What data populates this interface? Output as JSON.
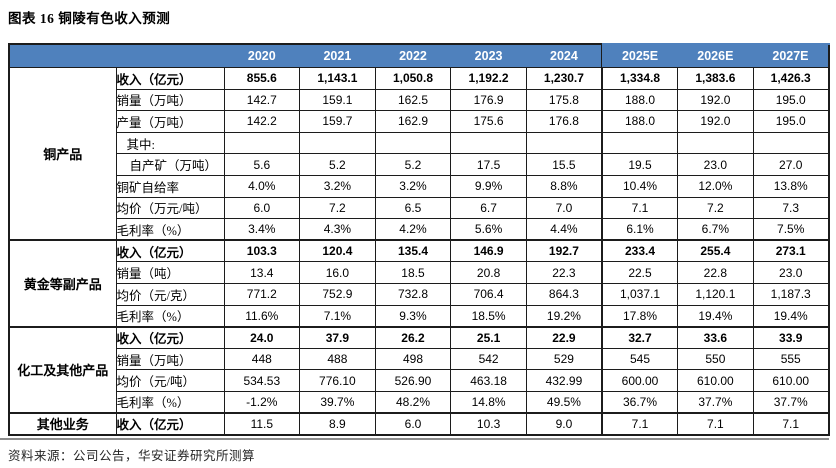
{
  "title": "图表 16 铜陵有色收入预测",
  "source": "资料来源：公司公告，华安证券研究所测算",
  "colors": {
    "header_bg": "#4f81bd",
    "header_text": "#ffffff",
    "border": "#1c1c1c",
    "divider": "#8c8c8c"
  },
  "table": {
    "years": [
      "2020",
      "2021",
      "2022",
      "2023",
      "2024",
      "2025E",
      "2026E",
      "2027E"
    ],
    "estimate_columns_start_index": 5,
    "sections": [
      {
        "group": "铜产品",
        "rows": [
          {
            "label": "收入（亿元）",
            "bold": true,
            "bold_values": true,
            "values": [
              "855.6",
              "1,143.1",
              "1,050.8",
              "1,192.2",
              "1,230.7",
              "1,334.8",
              "1,383.6",
              "1,426.3"
            ]
          },
          {
            "label": "销量（万吨）",
            "values": [
              "142.7",
              "159.1",
              "162.5",
              "176.9",
              "175.8",
              "188.0",
              "192.0",
              "195.0"
            ]
          },
          {
            "label": "产量（万吨）",
            "values": [
              "142.2",
              "159.7",
              "162.9",
              "175.6",
              "176.8",
              "188.0",
              "192.0",
              "195.0"
            ]
          },
          {
            "label": "其中:",
            "indent": 1,
            "values": [
              "",
              "",
              "",
              "",
              "",
              "",
              "",
              ""
            ]
          },
          {
            "label": "自产矿（万吨）",
            "indent": 2,
            "values": [
              "5.6",
              "5.2",
              "5.2",
              "17.5",
              "15.5",
              "19.5",
              "23.0",
              "27.0"
            ]
          },
          {
            "label": "铜矿自给率",
            "values": [
              "4.0%",
              "3.2%",
              "3.2%",
              "9.9%",
              "8.8%",
              "10.4%",
              "12.0%",
              "13.8%"
            ]
          },
          {
            "label": "均价（万元/吨）",
            "values": [
              "6.0",
              "7.2",
              "6.5",
              "6.7",
              "7.0",
              "7.1",
              "7.2",
              "7.3"
            ]
          },
          {
            "label": "毛利率（%）",
            "values": [
              "3.4%",
              "4.3%",
              "4.2%",
              "5.6%",
              "4.4%",
              "6.1%",
              "6.7%",
              "7.5%"
            ]
          }
        ]
      },
      {
        "group": "黄金等副产品",
        "rows": [
          {
            "label": "收入（亿元）",
            "bold": true,
            "bold_values": true,
            "values": [
              "103.3",
              "120.4",
              "135.4",
              "146.9",
              "192.7",
              "233.4",
              "255.4",
              "273.1"
            ]
          },
          {
            "label": "销量（吨）",
            "values": [
              "13.4",
              "16.0",
              "18.5",
              "20.8",
              "22.3",
              "22.5",
              "22.8",
              "23.0"
            ]
          },
          {
            "label": "均价（元/克）",
            "values": [
              "771.2",
              "752.9",
              "732.8",
              "706.4",
              "864.3",
              "1,037.1",
              "1,120.1",
              "1,187.3"
            ]
          },
          {
            "label": "毛利率（%）",
            "values": [
              "11.6%",
              "7.1%",
              "9.3%",
              "18.5%",
              "19.2%",
              "17.8%",
              "19.4%",
              "19.4%"
            ]
          }
        ]
      },
      {
        "group": "化工及其他产品",
        "rows": [
          {
            "label": "收入（亿元）",
            "bold": true,
            "bold_values": true,
            "values": [
              "24.0",
              "37.9",
              "26.2",
              "25.1",
              "22.9",
              "32.7",
              "33.6",
              "33.9"
            ]
          },
          {
            "label": "销量（万吨）",
            "values": [
              "448",
              "488",
              "498",
              "542",
              "529",
              "545",
              "550",
              "555"
            ]
          },
          {
            "label": "均价（元/吨）",
            "values": [
              "534.53",
              "776.10",
              "526.90",
              "463.18",
              "432.99",
              "600.00",
              "610.00",
              "610.00"
            ]
          },
          {
            "label": "毛利率（%）",
            "values": [
              "-1.2%",
              "39.7%",
              "48.2%",
              "14.8%",
              "49.5%",
              "36.7%",
              "37.7%",
              "37.7%"
            ]
          }
        ]
      },
      {
        "group": "其他业务",
        "rows": [
          {
            "label": "收入（亿元）",
            "bold": true,
            "bold_values": false,
            "values": [
              "11.5",
              "8.9",
              "6.0",
              "10.3",
              "9.0",
              "7.1",
              "7.1",
              "7.1"
            ]
          }
        ]
      }
    ]
  }
}
